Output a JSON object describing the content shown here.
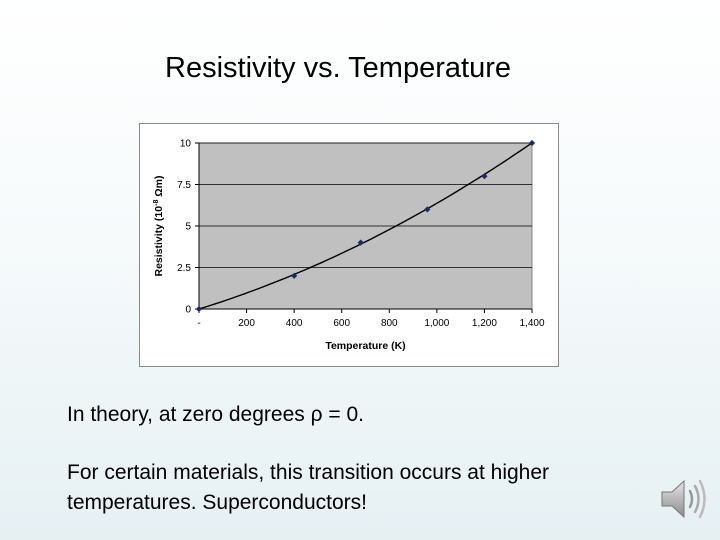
{
  "slide": {
    "title": "Resistivity vs. Temperature",
    "body": [
      "In theory, at zero degrees ρ = 0.",
      "For certain materials, this transition occurs at higher temperatures.  Superconductors!"
    ]
  },
  "icons": {
    "speaker": "speaker-icon"
  },
  "colors": {
    "plot_bg": "#c0c0c0",
    "point": "#1a2a6c",
    "line": "#000000"
  },
  "chart_data": {
    "type": "scatter",
    "xlabel": "Temperature (K)",
    "ylabel": "Resistivity (10",
    "ylabel_sup": "-8",
    "ylabel_unit": " Ωm)",
    "xlim": [
      0,
      1400
    ],
    "ylim": [
      0,
      10
    ],
    "x_ticks": [
      0,
      200,
      400,
      600,
      800,
      1000,
      1200,
      1400
    ],
    "x_tick_labels": [
      "-",
      "200",
      "400",
      "600",
      "800",
      "1,000",
      "1,200",
      "1,400"
    ],
    "y_ticks": [
      0,
      2.5,
      5,
      7.5,
      10
    ],
    "y_tick_labels": [
      "0",
      "2.5",
      "5",
      "7.5",
      "10"
    ],
    "series": [
      {
        "x": [
          0,
          400,
          680,
          960,
          1200,
          1400
        ],
        "y": [
          0,
          2,
          4,
          6,
          8,
          10
        ]
      }
    ],
    "trendline": true,
    "grid": {
      "x": false,
      "y": true
    },
    "legend": "none"
  }
}
